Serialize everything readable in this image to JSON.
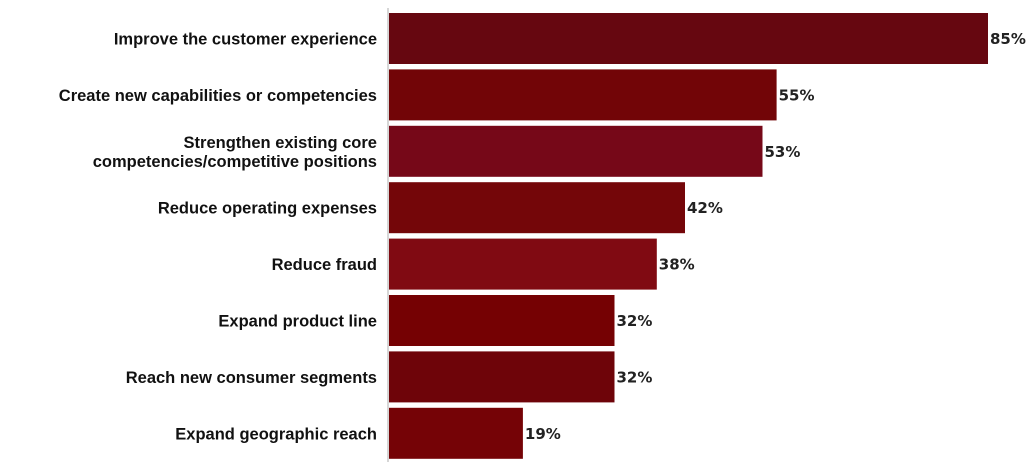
{
  "chart_data": {
    "type": "bar",
    "orientation": "horizontal",
    "categories": [
      [
        "Improve the customer experience"
      ],
      [
        "Create new capabilities or competencies"
      ],
      [
        "Strengthen existing core",
        "competencies/competitive positions"
      ],
      [
        "Reduce operating expenses"
      ],
      [
        "Reduce fraud"
      ],
      [
        "Expand product line"
      ],
      [
        "Reach new consumer segments"
      ],
      [
        "Expand geographic reach"
      ]
    ],
    "values": [
      85,
      55,
      53,
      42,
      38,
      32,
      32,
      19
    ],
    "value_labels": [
      "85%",
      "55%",
      "53%",
      "42%",
      "38%",
      "32%",
      "32%",
      "19%"
    ],
    "unit": "%",
    "xlim": [
      0,
      85
    ],
    "grid": false,
    "legend": "none",
    "bar_colors": [
      "#660710",
      "#720507",
      "#760818",
      "#740609",
      "#800a12",
      "#750103",
      "#6e0409",
      "#750306"
    ]
  }
}
